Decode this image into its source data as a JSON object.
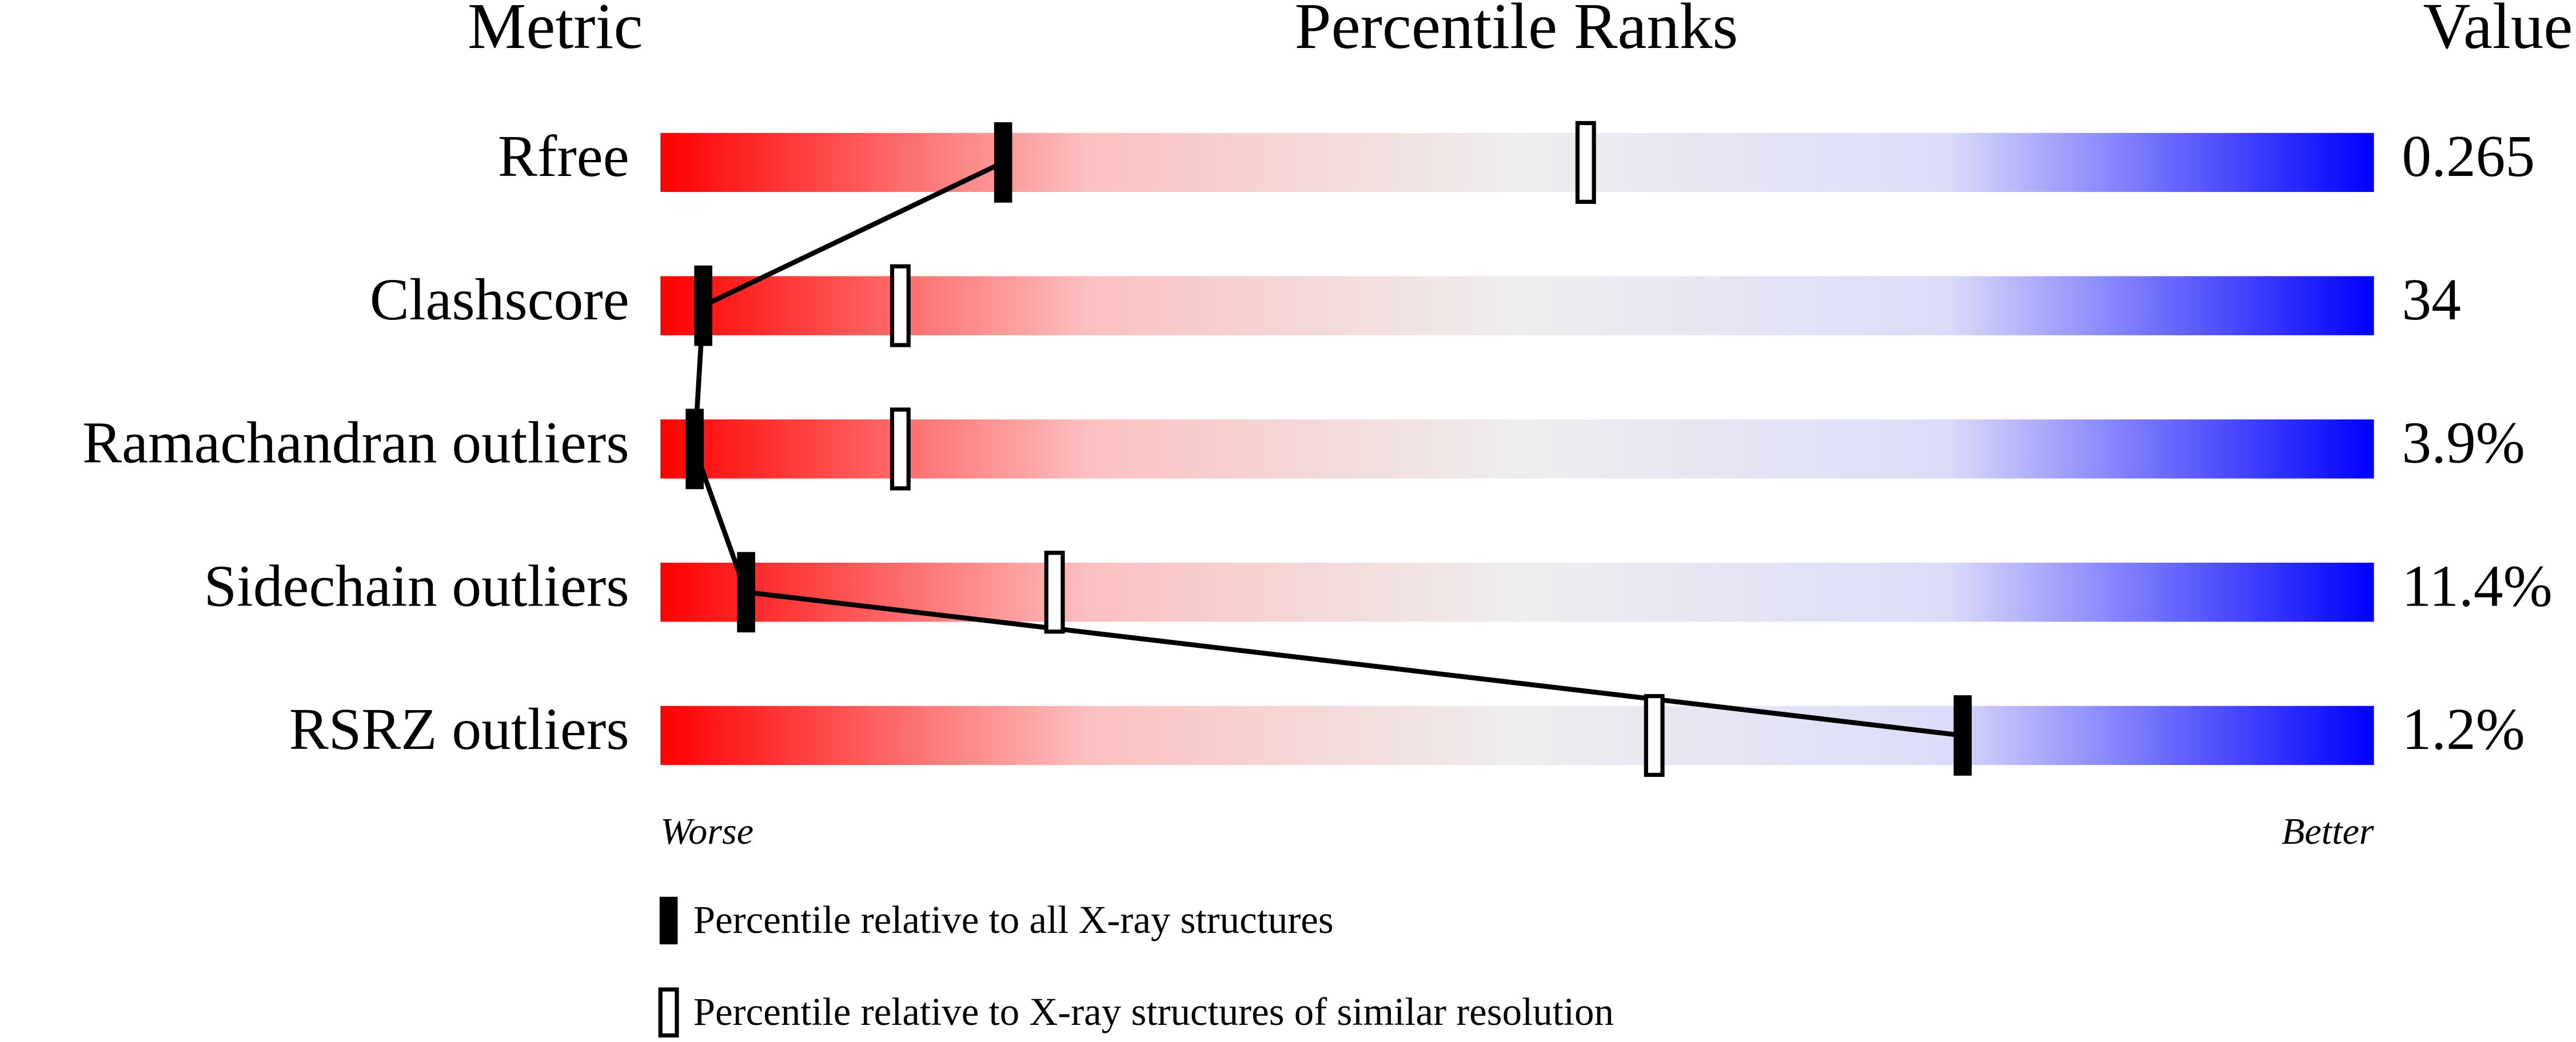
{
  "chart_data": {
    "type": "percentile",
    "title": "Percentile Ranks",
    "metric_header": "Metric",
    "value_header": "Value",
    "categories": [
      "Rfree",
      "Clashscore",
      "Ramachandran outliers",
      "Sidechain outliers",
      "RSRZ outliers"
    ],
    "value_labels": [
      "0.265",
      "34",
      "3.9%",
      "11.4%",
      "1.2%"
    ],
    "series": [
      {
        "name": "Percentile relative to all X-ray structures",
        "color": "#000000",
        "style": "filled",
        "values": [
          20,
          2.5,
          2,
          5,
          76
        ]
      },
      {
        "name": "Percentile relative to X-ray structures of similar resolution",
        "color": "#000000",
        "style": "outline",
        "values": [
          54,
          14,
          14,
          23,
          58
        ]
      }
    ],
    "xlim": [
      0,
      100
    ],
    "worse_label": "Worse",
    "better_label": "Better",
    "gradient": [
      "#ff0000",
      "#fcc0c0",
      "#eeeeee",
      "#dcdcfa",
      "#0000ff"
    ]
  }
}
